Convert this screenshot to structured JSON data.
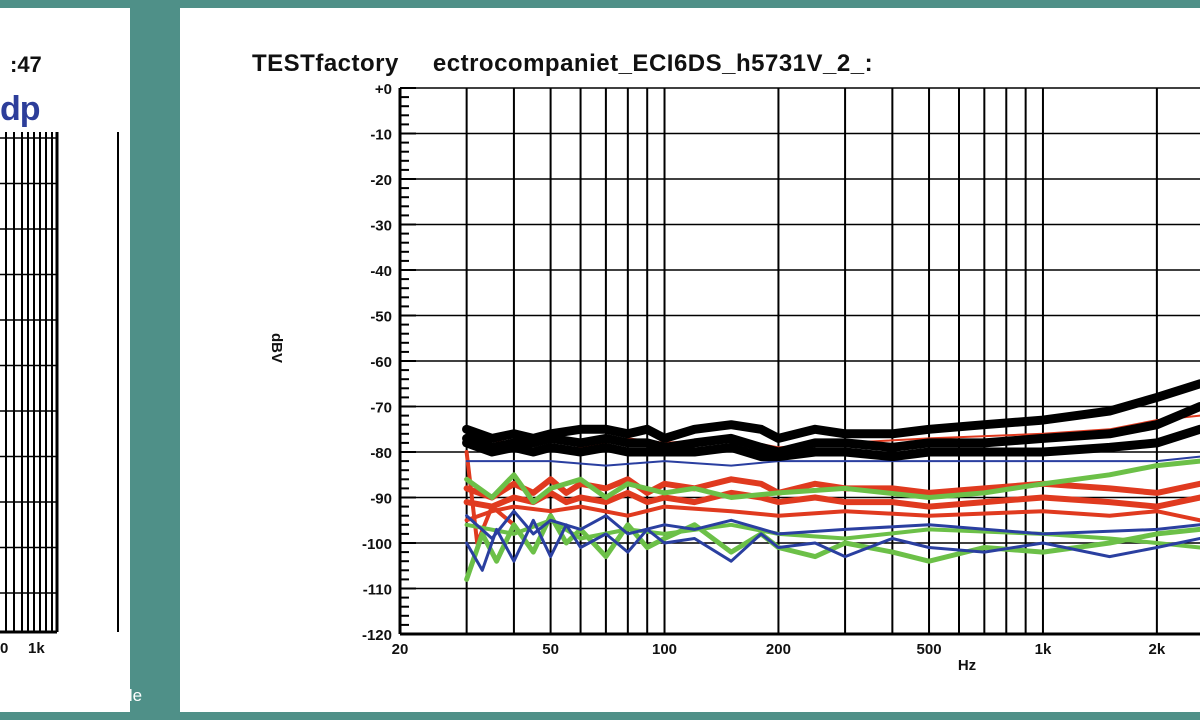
{
  "left_panel": {
    "time_fragment": ":47",
    "brand_fragment": "dp",
    "x_ticks": [
      "0",
      "1k"
    ]
  },
  "credit": "© Archiv, H. Härle",
  "chart_data": {
    "type": "line",
    "title": "TESTfactory",
    "subtitle": "ectrocompaniet_ECI6DS_h5731V_2_:",
    "xlabel": "Hz",
    "ylabel": "dBV",
    "x_scale": "log",
    "xlim": [
      20,
      2600
    ],
    "ylim": [
      -120,
      0
    ],
    "x_ticks": [
      {
        "value": 20,
        "label": "20"
      },
      {
        "value": 50,
        "label": "50"
      },
      {
        "value": 100,
        "label": "100"
      },
      {
        "value": 200,
        "label": "200"
      },
      {
        "value": 500,
        "label": "500"
      },
      {
        "value": 1000,
        "label": "1k"
      },
      {
        "value": 2000,
        "label": "2k"
      }
    ],
    "y_ticks": [
      {
        "value": 0,
        "label": "+0"
      },
      {
        "value": -10,
        "label": "-10"
      },
      {
        "value": -20,
        "label": "-20"
      },
      {
        "value": -30,
        "label": "-30"
      },
      {
        "value": -40,
        "label": "-40"
      },
      {
        "value": -50,
        "label": "-50"
      },
      {
        "value": -60,
        "label": "-60"
      },
      {
        "value": -70,
        "label": "-70"
      },
      {
        "value": -80,
        "label": "-80"
      },
      {
        "value": -90,
        "label": "-90"
      },
      {
        "value": -100,
        "label": "-100"
      },
      {
        "value": -110,
        "label": "-110"
      },
      {
        "value": -120,
        "label": "-120"
      }
    ],
    "grid": true,
    "series": [
      {
        "color": "#000000",
        "width": 9,
        "x": [
          30,
          35,
          40,
          45,
          50,
          60,
          70,
          80,
          90,
          100,
          120,
          150,
          180,
          200,
          250,
          300,
          400,
          500,
          700,
          1000,
          1500,
          2000,
          2600
        ],
        "y": [
          -75,
          -77,
          -76,
          -77,
          -76,
          -75,
          -75,
          -76,
          -75,
          -77,
          -75,
          -74,
          -75,
          -77,
          -75,
          -76,
          -76,
          -75,
          -74,
          -73,
          -71,
          -68,
          -65
        ]
      },
      {
        "color": "#000000",
        "width": 9,
        "x": [
          30,
          35,
          40,
          45,
          50,
          60,
          70,
          80,
          90,
          100,
          120,
          150,
          180,
          200,
          250,
          300,
          400,
          500,
          700,
          1000,
          1500,
          2000,
          2600
        ],
        "y": [
          -77,
          -79,
          -78,
          -78,
          -77,
          -78,
          -77,
          -78,
          -78,
          -79,
          -78,
          -77,
          -79,
          -80,
          -78,
          -78,
          -79,
          -78,
          -78,
          -77,
          -76,
          -74,
          -70
        ]
      },
      {
        "color": "#000000",
        "width": 9,
        "x": [
          30,
          35,
          40,
          45,
          50,
          60,
          70,
          80,
          90,
          100,
          120,
          150,
          180,
          200,
          250,
          300,
          400,
          500,
          700,
          1000,
          1500,
          2000,
          2600
        ],
        "y": [
          -78,
          -80,
          -79,
          -80,
          -79,
          -80,
          -79,
          -80,
          -80,
          -80,
          -80,
          -79,
          -81,
          -81,
          -80,
          -80,
          -81,
          -80,
          -80,
          -80,
          -79,
          -78,
          -75
        ]
      },
      {
        "color": "#e03a1f",
        "width": 2,
        "x": [
          30,
          40,
          50,
          60,
          80,
          100,
          150,
          200,
          300,
          500,
          1000,
          1500,
          2000,
          2600
        ],
        "y": [
          -77,
          -78,
          -76,
          -79,
          -77,
          -78,
          -77,
          -79,
          -78,
          -77,
          -76,
          -75,
          -73,
          -72
        ]
      },
      {
        "color": "#e03a1f",
        "width": 6,
        "x": [
          30,
          35,
          40,
          45,
          50,
          55,
          60,
          70,
          80,
          90,
          100,
          120,
          150,
          180,
          200,
          250,
          300,
          400,
          500,
          700,
          1000,
          1500,
          2000,
          2600
        ],
        "y": [
          -88,
          -90,
          -87,
          -89,
          -86,
          -89,
          -87,
          -88,
          -86,
          -89,
          -87,
          -88,
          -86,
          -87,
          -89,
          -87,
          -88,
          -88,
          -89,
          -88,
          -87,
          -88,
          -89,
          -87
        ]
      },
      {
        "color": "#e03a1f",
        "width": 6,
        "x": [
          30,
          35,
          40,
          45,
          50,
          55,
          60,
          70,
          80,
          90,
          100,
          120,
          150,
          180,
          200,
          250,
          300,
          400,
          500,
          700,
          1000,
          1500,
          2000,
          2600
        ],
        "y": [
          -91,
          -92,
          -90,
          -91,
          -89,
          -91,
          -90,
          -91,
          -89,
          -91,
          -90,
          -91,
          -89,
          -90,
          -91,
          -90,
          -91,
          -91,
          -92,
          -91,
          -90,
          -91,
          -92,
          -90
        ]
      },
      {
        "color": "#e03a1f",
        "width": 4,
        "x": [
          30,
          35,
          40,
          50,
          60,
          80,
          100,
          150,
          200,
          300,
          500,
          1000,
          1500,
          2000,
          2600
        ],
        "y": [
          -95,
          -93,
          -92,
          -93,
          -92,
          -94,
          -92,
          -93,
          -94,
          -93,
          -94,
          -93,
          -94,
          -93,
          -95
        ]
      },
      {
        "color": "#e03a1f",
        "width": 4,
        "x": [
          30,
          32,
          35,
          40
        ],
        "y": [
          -80,
          -100,
          -92,
          -96
        ]
      },
      {
        "color": "#6cc048",
        "width": 5,
        "x": [
          30,
          33,
          36,
          40,
          45,
          50,
          55,
          60,
          70,
          80,
          90,
          100,
          120,
          150,
          180,
          200,
          250,
          300,
          400,
          500,
          700,
          1000,
          1500,
          2000,
          2600
        ],
        "y": [
          -108,
          -98,
          -104,
          -96,
          -102,
          -94,
          -100,
          -97,
          -103,
          -96,
          -101,
          -99,
          -96,
          -102,
          -98,
          -101,
          -103,
          -100,
          -102,
          -104,
          -101,
          -102,
          -100,
          -98,
          -97
        ]
      },
      {
        "color": "#6cc048",
        "width": 5,
        "x": [
          30,
          35,
          40,
          45,
          50,
          60,
          70,
          80,
          100,
          120,
          150,
          200,
          300,
          500,
          700,
          1000,
          1500,
          2000,
          2600
        ],
        "y": [
          -86,
          -90,
          -85,
          -91,
          -88,
          -86,
          -90,
          -87,
          -89,
          -88,
          -90,
          -89,
          -88,
          -90,
          -89,
          -87,
          -85,
          -83,
          -82
        ]
      },
      {
        "color": "#6cc048",
        "width": 4,
        "x": [
          30,
          40,
          50,
          60,
          80,
          100,
          150,
          200,
          300,
          500,
          1000,
          1500,
          2000,
          2600
        ],
        "y": [
          -96,
          -98,
          -95,
          -99,
          -97,
          -98,
          -96,
          -98,
          -99,
          -97,
          -98,
          -99,
          -100,
          -101
        ]
      },
      {
        "color": "#2a3fa0",
        "width": 3,
        "x": [
          30,
          33,
          36,
          40,
          45,
          50,
          55,
          60,
          70,
          80,
          90,
          100,
          120,
          150,
          180,
          200,
          250,
          300,
          400,
          500,
          700,
          1000,
          1500,
          2000,
          2600
        ],
        "y": [
          -100,
          -106,
          -97,
          -104,
          -95,
          -103,
          -96,
          -101,
          -98,
          -102,
          -97,
          -100,
          -99,
          -104,
          -98,
          -101,
          -100,
          -103,
          -99,
          -101,
          -102,
          -100,
          -103,
          -101,
          -99
        ]
      },
      {
        "color": "#2a3fa0",
        "width": 3,
        "x": [
          30,
          35,
          40,
          45,
          50,
          60,
          70,
          80,
          100,
          120,
          150,
          200,
          300,
          500,
          1000,
          2000,
          2600
        ],
        "y": [
          -94,
          -99,
          -93,
          -98,
          -95,
          -97,
          -94,
          -98,
          -96,
          -97,
          -95,
          -98,
          -97,
          -96,
          -98,
          -97,
          -96
        ]
      },
      {
        "color": "#2a3fa0",
        "width": 2,
        "x": [
          30,
          40,
          50,
          70,
          100,
          150,
          200,
          300,
          500,
          1000,
          2000,
          2600
        ],
        "y": [
          -82,
          -82,
          -82,
          -83,
          -82,
          -83,
          -82,
          -82,
          -82,
          -82,
          -82,
          -81
        ]
      }
    ]
  }
}
